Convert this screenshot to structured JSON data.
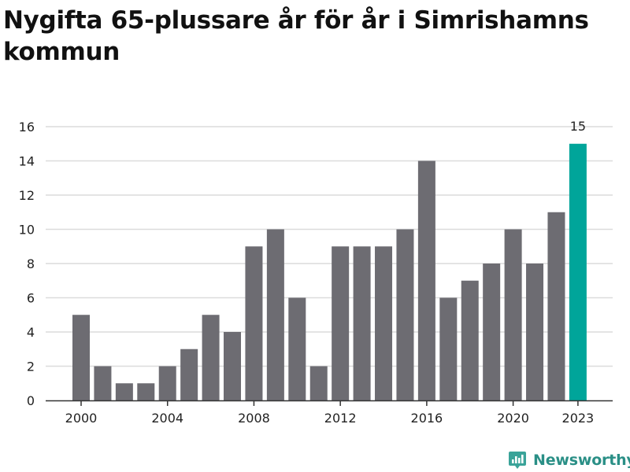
{
  "title": "Nygifta 65-plussare år för år i Simrishamns kommun",
  "brand": {
    "name": "Newsworthy",
    "icon": "newsworthy-logo-icon",
    "color": "#2a9d8f"
  },
  "colors": {
    "bar": "#6d6c72",
    "highlight": "#00a59a",
    "grid": "#dcdcdc",
    "axis": "#333333",
    "text": "#222222"
  },
  "chart_data": {
    "type": "bar",
    "title": "Nygifta 65-plussare år för år i Simrishamns kommun",
    "xlabel": "",
    "ylabel": "",
    "ylim": [
      0,
      16
    ],
    "yticks": [
      0,
      2,
      4,
      6,
      8,
      10,
      12,
      14,
      16
    ],
    "ytick_labels": [
      "0",
      "2",
      "4",
      "6",
      "8",
      "10",
      "12",
      "14",
      "16"
    ],
    "categories": [
      "2000",
      "2001",
      "2002",
      "2003",
      "2004",
      "2005",
      "2006",
      "2007",
      "2008",
      "2009",
      "2010",
      "2011",
      "2012",
      "2013",
      "2014",
      "2015",
      "2016",
      "2017",
      "2018",
      "2019",
      "2020",
      "2021",
      "2022",
      "2023"
    ],
    "values": [
      5,
      2,
      1,
      1,
      2,
      3,
      5,
      4,
      9,
      10,
      6,
      2,
      9,
      9,
      9,
      10,
      14,
      6,
      7,
      8,
      10,
      8,
      11,
      15
    ],
    "xtick_labels": [
      "2000",
      "2004",
      "2008",
      "2012",
      "2016",
      "2020",
      "2023"
    ],
    "highlight": {
      "category": "2023",
      "label": "15"
    },
    "grid": true,
    "legend": "none"
  }
}
